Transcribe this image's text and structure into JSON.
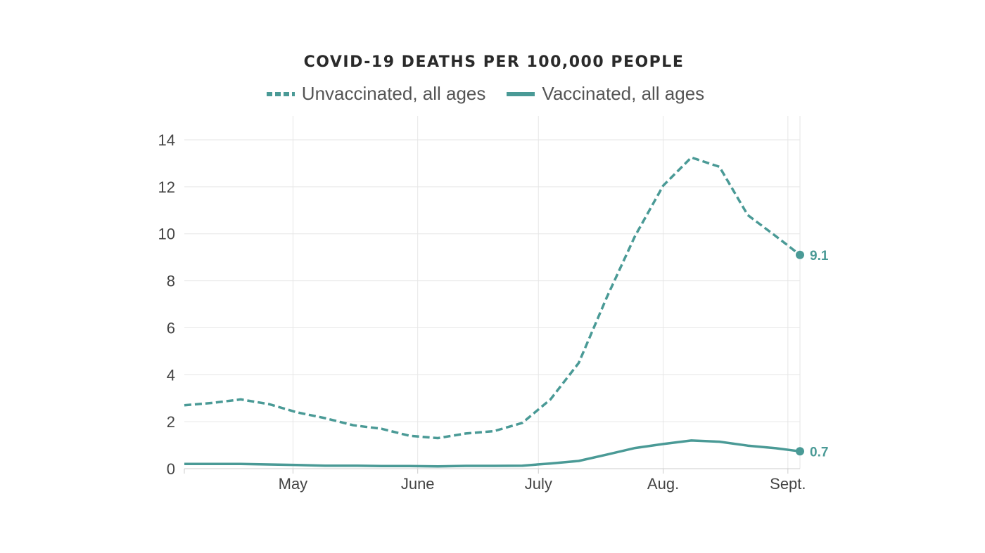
{
  "chart_data": {
    "type": "line",
    "title": "COVID-19 DEATHS PER 100,000 PEOPLE",
    "xlabel": "",
    "ylabel": "",
    "ylim": [
      0,
      14
    ],
    "xlim": [
      "2021-04-04",
      "2021-09-04"
    ],
    "grid": true,
    "legend_position": "top-center",
    "y_ticks": [
      0,
      2,
      4,
      6,
      8,
      10,
      12,
      14
    ],
    "x_ticks": [
      {
        "label": "May",
        "date": "2021-05-01"
      },
      {
        "label": "June",
        "date": "2021-06-01"
      },
      {
        "label": "July",
        "date": "2021-07-01"
      },
      {
        "label": "Aug.",
        "date": "2021-08-01"
      },
      {
        "label": "Sept.",
        "date": "2021-09-01"
      }
    ],
    "x": [
      "2021-04-04",
      "2021-04-11",
      "2021-04-18",
      "2021-04-25",
      "2021-05-02",
      "2021-05-09",
      "2021-05-16",
      "2021-05-23",
      "2021-05-30",
      "2021-06-06",
      "2021-06-13",
      "2021-06-20",
      "2021-06-27",
      "2021-07-04",
      "2021-07-11",
      "2021-07-18",
      "2021-07-25",
      "2021-08-01",
      "2021-08-08",
      "2021-08-15",
      "2021-08-22",
      "2021-08-29",
      "2021-09-04"
    ],
    "series": [
      {
        "name": "Unvaccinated, all ages",
        "style": "dashed",
        "color": "#4a9a96",
        "values": [
          2.7,
          2.8,
          2.95,
          2.75,
          2.4,
          2.15,
          1.85,
          1.7,
          1.4,
          1.3,
          1.5,
          1.6,
          1.95,
          2.95,
          4.5,
          7.3,
          9.9,
          12.05,
          13.25,
          12.85,
          10.8,
          9.9,
          9.1
        ],
        "end_label": "9.1"
      },
      {
        "name": "Vaccinated, all ages",
        "style": "solid",
        "color": "#4a9a96",
        "values": [
          0.2,
          0.2,
          0.2,
          0.18,
          0.16,
          0.13,
          0.13,
          0.11,
          0.11,
          0.1,
          0.12,
          0.12,
          0.13,
          0.22,
          0.33,
          0.6,
          0.88,
          1.05,
          1.2,
          1.15,
          0.98,
          0.87,
          0.74
        ],
        "end_label": "0.7"
      }
    ]
  },
  "colors": {
    "series": "#4a9a96",
    "grid": "#e6e6e6",
    "axis": "#cccccc",
    "title": "#2a2a2a",
    "legend_text": "#555555",
    "tick_text": "#444444"
  }
}
